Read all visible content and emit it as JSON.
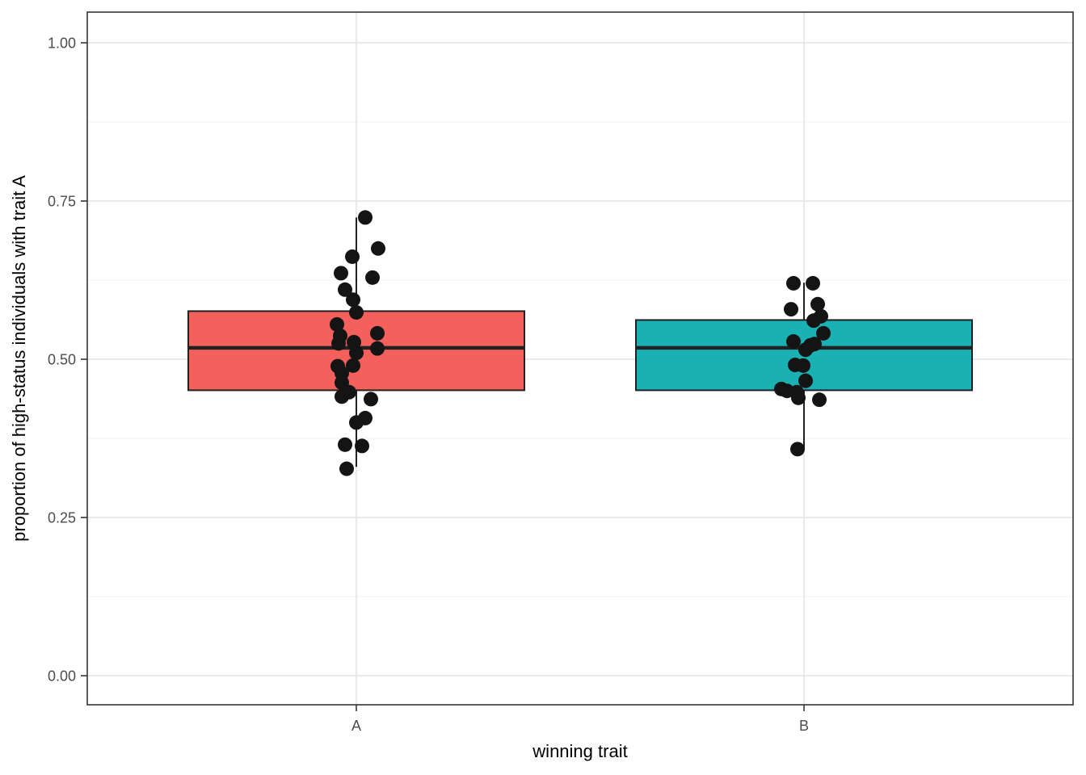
{
  "chart_data": {
    "type": "boxplot",
    "title": "",
    "xlabel": "winning trait",
    "ylabel": "proportion of high-status individuals with trait A",
    "categories": [
      "A",
      "B"
    ],
    "ylim": [
      0,
      1
    ],
    "grid": true,
    "legend_position": "none",
    "y_ticks": [
      {
        "label": "0.00",
        "value": 0.0
      },
      {
        "label": "0.25",
        "value": 0.25
      },
      {
        "label": "0.50",
        "value": 0.5
      },
      {
        "label": "0.75",
        "value": 0.75
      },
      {
        "label": "1.00",
        "value": 1.0
      }
    ],
    "y_minor_ticks": [
      0.125,
      0.375,
      0.625,
      0.875
    ],
    "colors": {
      "box_a_fill": "#F4605C",
      "box_b_fill": "#1AB1B5",
      "box_stroke": "#212121",
      "point": "#141414",
      "grid_major": "#E3E3E3",
      "grid_minor": "#F0F0F0",
      "panel_border": "#333333",
      "tick_label": "#4D4D4D",
      "axis_title": "#000000",
      "panel_background": "#FFFFFF"
    },
    "boxes": [
      {
        "category": "A",
        "fill_key": "box_a_fill",
        "whisker_low": 0.33,
        "q1": 0.451,
        "median": 0.518,
        "q3": 0.576,
        "whisker_high": 0.724,
        "points": [
          [
            11,
            0.724
          ],
          [
            27,
            0.675
          ],
          [
            -5,
            0.662
          ],
          [
            -19,
            0.636
          ],
          [
            20,
            0.629
          ],
          [
            -14,
            0.61
          ],
          [
            -4,
            0.594
          ],
          [
            0,
            0.574
          ],
          [
            -24,
            0.555
          ],
          [
            26,
            0.541
          ],
          [
            -20,
            0.537
          ],
          [
            -3,
            0.527
          ],
          [
            -22,
            0.525
          ],
          [
            26,
            0.517
          ],
          [
            0,
            0.51
          ],
          [
            -4,
            0.49
          ],
          [
            -23,
            0.489
          ],
          [
            -18,
            0.478
          ],
          [
            -18,
            0.463
          ],
          [
            -9,
            0.448
          ],
          [
            -18,
            0.441
          ],
          [
            18,
            0.437
          ],
          [
            11,
            0.407
          ],
          [
            0,
            0.4
          ],
          [
            -14,
            0.365
          ],
          [
            7,
            0.363
          ],
          [
            -12,
            0.327
          ]
        ]
      },
      {
        "category": "B",
        "fill_key": "box_b_fill",
        "whisker_low": 0.36,
        "q1": 0.451,
        "median": 0.518,
        "q3": 0.562,
        "whisker_high": 0.621,
        "points": [
          [
            -13,
            0.62
          ],
          [
            11,
            0.62
          ],
          [
            17,
            0.587
          ],
          [
            -16,
            0.579
          ],
          [
            21,
            0.568
          ],
          [
            12,
            0.561
          ],
          [
            24,
            0.541
          ],
          [
            -13,
            0.528
          ],
          [
            13,
            0.524
          ],
          [
            8,
            0.522
          ],
          [
            2,
            0.515
          ],
          [
            -11,
            0.491
          ],
          [
            -1,
            0.49
          ],
          [
            2,
            0.466
          ],
          [
            -28,
            0.453
          ],
          [
            -21,
            0.45
          ],
          [
            -9,
            0.448
          ],
          [
            -7,
            0.439
          ],
          [
            19,
            0.436
          ],
          [
            -8,
            0.358
          ]
        ]
      }
    ]
  }
}
